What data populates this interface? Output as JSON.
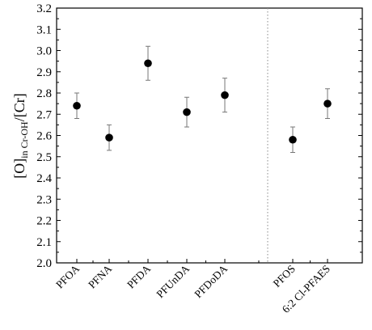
{
  "chart_data": {
    "type": "scatter",
    "title": "",
    "xlabel": "",
    "ylabel_main_open": "[O]",
    "ylabel_sub": "in Cr-OH",
    "ylabel_main_close": "/[Cr]",
    "ylim": [
      2.0,
      3.2
    ],
    "y_ticks": [
      "2.0",
      "2.1",
      "2.2",
      "2.3",
      "2.4",
      "2.5",
      "2.6",
      "2.7",
      "2.8",
      "2.9",
      "3.0",
      "3.1",
      "3.2"
    ],
    "grid": false,
    "error_bars": true,
    "separator": "dotted vertical line between PFDoDA and PFOS",
    "categories": [
      "PFOA",
      "PFNA",
      "PFDA",
      "PFUnDA",
      "PFDoDA",
      "PFOS",
      "6:2 Cl-PFAES"
    ],
    "values": [
      2.74,
      2.59,
      2.94,
      2.71,
      2.79,
      2.58,
      2.75
    ],
    "errors": [
      0.06,
      0.06,
      0.08,
      0.07,
      0.08,
      0.06,
      0.07
    ],
    "marker_color": "#000000",
    "errorbar_color": "#777777"
  }
}
